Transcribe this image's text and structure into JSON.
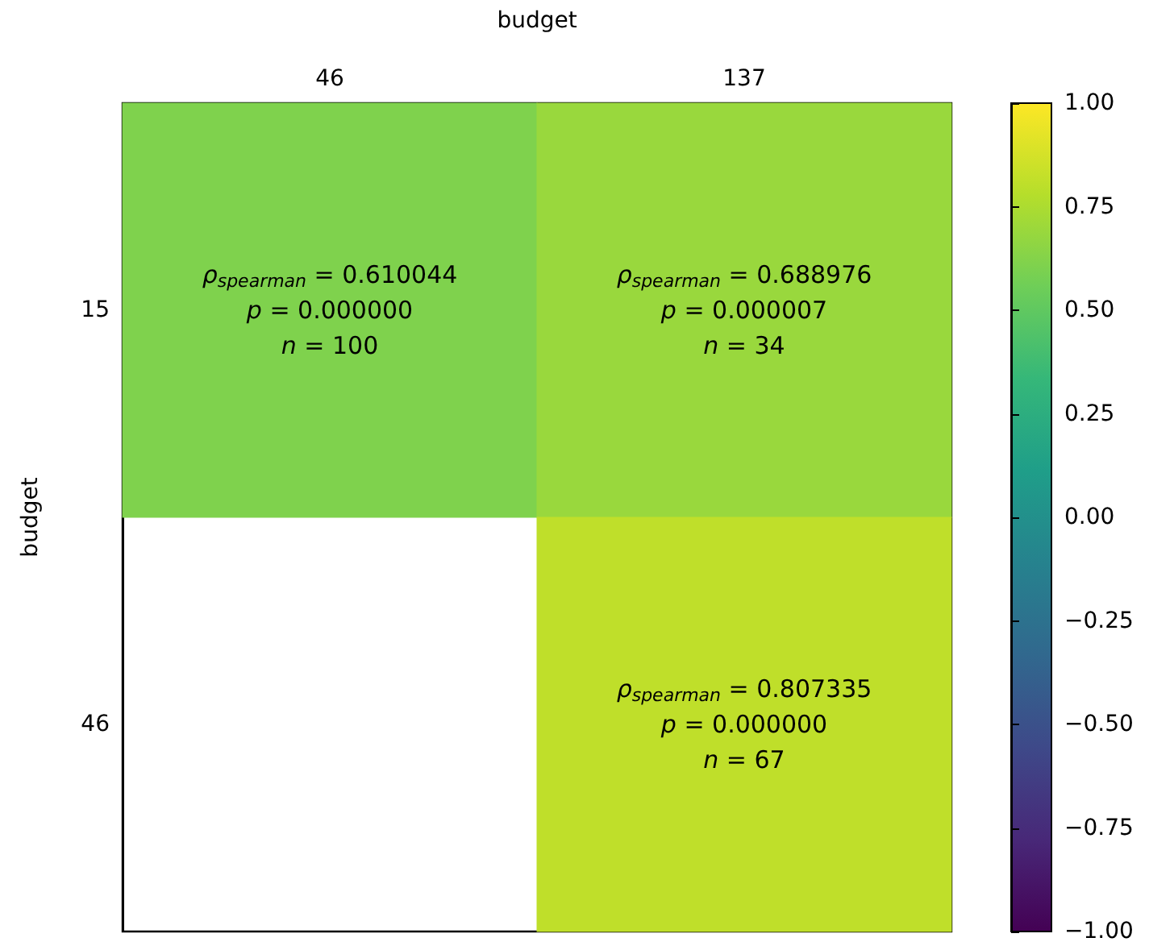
{
  "chart_data": {
    "type": "heatmap",
    "xlabel": "budget",
    "ylabel": "budget",
    "categories": [
      "46",
      "137"
    ],
    "y_categories": [
      "15",
      "46"
    ],
    "cells": [
      [
        0.610044,
        0.688976
      ],
      [
        null,
        0.807335
      ]
    ],
    "cell_labels": [
      [
        "ρ$_{spearman}$ = 0.610044\np = 0.000000\nn = 100",
        "ρ$_{spearman}$ = 0.688976\np = 0.000007\nn = 34"
      ],
      [
        null,
        "ρ$_{spearman}$ = 0.807335\np = 0.000000\nn = 67"
      ]
    ],
    "clim": [
      -1,
      1
    ],
    "cticks": [
      {
        "value": -1,
        "label": "−1.00"
      },
      {
        "value": -0.75,
        "label": "−0.75"
      },
      {
        "value": -0.5,
        "label": "−0.50"
      },
      {
        "value": -0.25,
        "label": "−0.25"
      },
      {
        "value": 0,
        "label": "0.00"
      },
      {
        "value": 0.25,
        "label": "0.25"
      },
      {
        "value": 0.5,
        "label": "0.50"
      },
      {
        "value": 0.75,
        "label": "0.75"
      },
      {
        "value": 1,
        "label": "1.00"
      }
    ]
  }
}
